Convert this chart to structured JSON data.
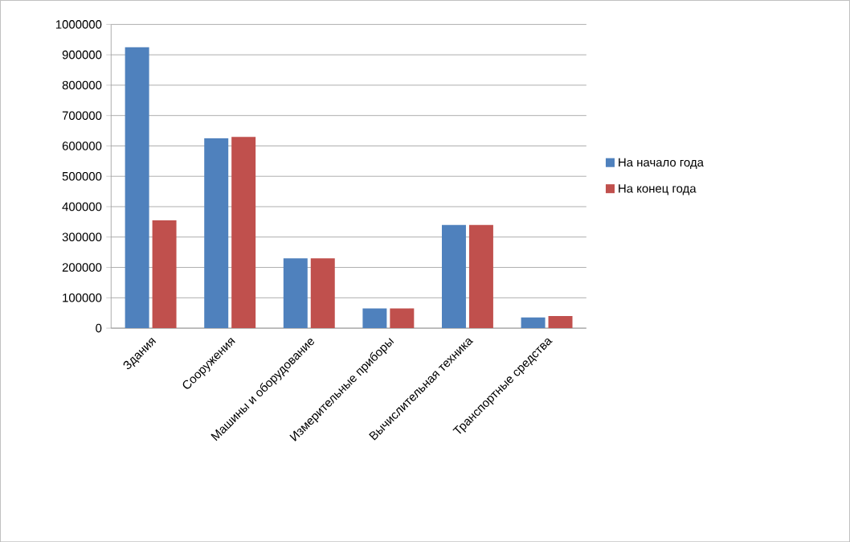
{
  "chart_data": {
    "type": "bar",
    "categories": [
      "Здания",
      "Сооружения",
      "Машины и оборудование",
      "Измерительные приборы",
      "Вычислительная техника",
      "Транспортные средства"
    ],
    "series": [
      {
        "name": "На начало года",
        "color": "#4f81bd",
        "values": [
          925000,
          625000,
          230000,
          65000,
          340000,
          35000
        ]
      },
      {
        "name": "На конец года",
        "color": "#c0504d",
        "values": [
          355000,
          630000,
          230000,
          65000,
          340000,
          40000
        ]
      }
    ],
    "ylim": [
      0,
      1000000
    ],
    "yticks": [
      0,
      100000,
      200000,
      300000,
      400000,
      500000,
      600000,
      700000,
      800000,
      900000,
      1000000
    ],
    "grid": "y",
    "legend": "right"
  }
}
